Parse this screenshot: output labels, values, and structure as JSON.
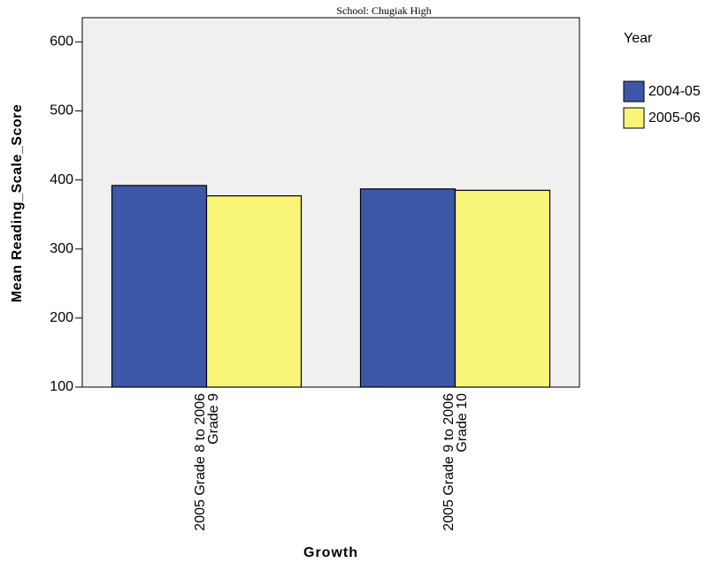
{
  "chart_data": {
    "type": "bar",
    "title": "School: Chugiak High",
    "x_label": "Growth",
    "y_label": "Mean Reading_Scale_Score",
    "categories": [
      "2005 Grade 8 to 2006 Grade 9",
      "2005 Grade 9 to 2006 Grade 10"
    ],
    "series": [
      {
        "name": "2004-05",
        "color": "#3d57a8",
        "values": [
          392,
          387
        ]
      },
      {
        "name": "2005-06",
        "color": "#f8f578",
        "values": [
          377,
          385
        ]
      }
    ],
    "legend_title": "Year",
    "legend": "right",
    "ylim": [
      100,
      635
    ],
    "yticks": [
      100,
      200,
      300,
      400,
      500,
      600
    ],
    "grid": false
  }
}
